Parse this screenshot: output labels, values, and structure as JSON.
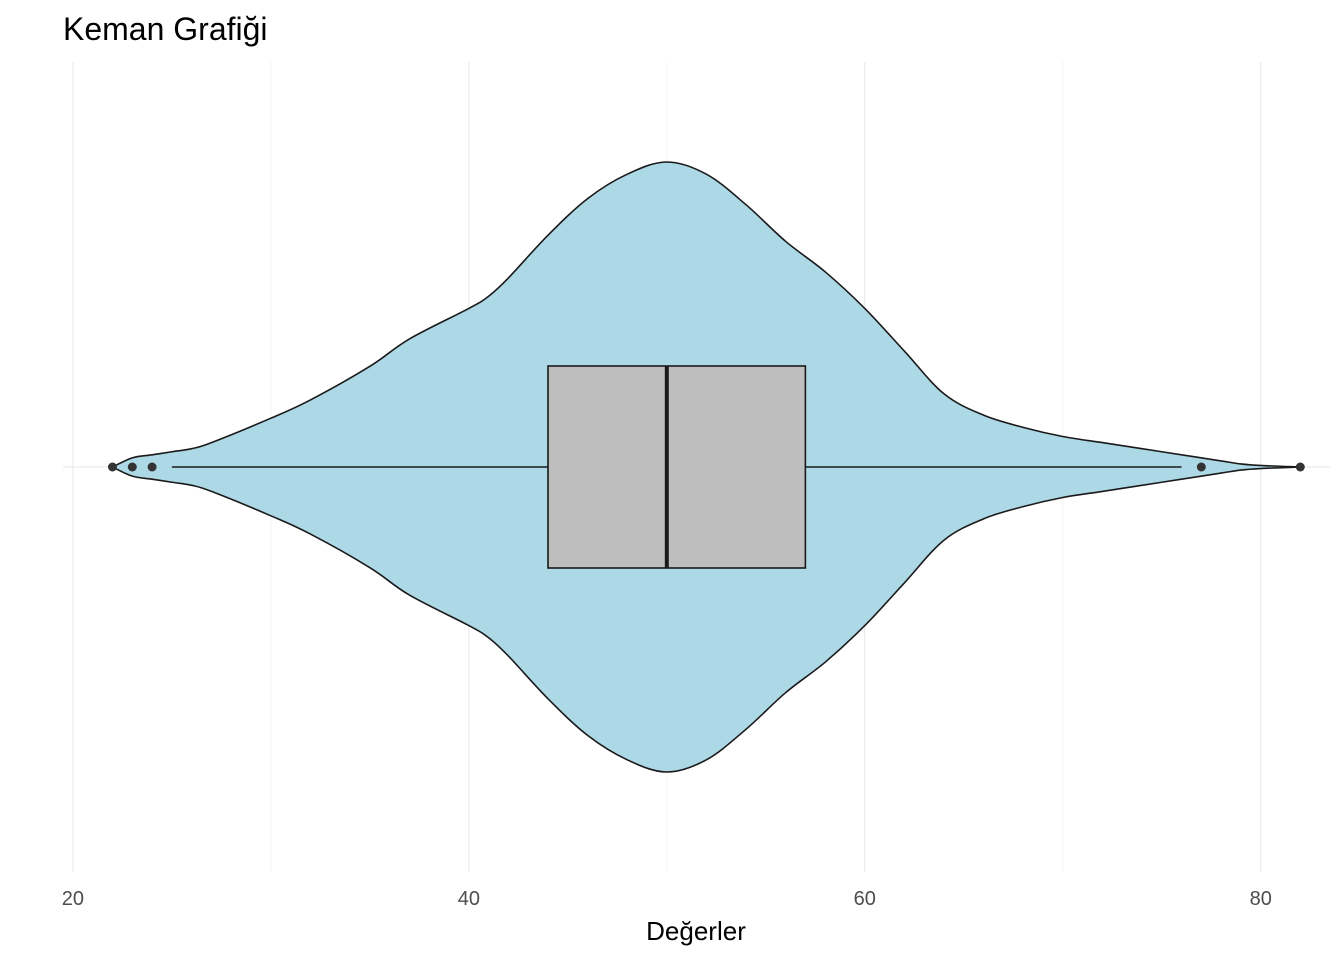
{
  "chart_data": {
    "type": "violin",
    "title": "Keman Grafiği",
    "xlabel": "Değerler",
    "ylabel": "",
    "xlim": [
      19.5,
      83.5
    ],
    "x_ticks": [
      20,
      40,
      60,
      80
    ],
    "x_minor_ticks": [
      30,
      50,
      70
    ],
    "grid": true,
    "colors": {
      "violin_fill": "#add8e6",
      "box_fill": "#bebebe",
      "outline": "#1a1a1a",
      "grid_major": "#ebebeb",
      "grid_minor": "#f2f2f2",
      "points": "#333333"
    },
    "violin_density": [
      {
        "x": 22,
        "w": 0.0
      },
      {
        "x": 23,
        "w": 0.03
      },
      {
        "x": 24,
        "w": 0.04
      },
      {
        "x": 25,
        "w": 0.05
      },
      {
        "x": 26,
        "w": 0.06
      },
      {
        "x": 27,
        "w": 0.08
      },
      {
        "x": 30,
        "w": 0.16
      },
      {
        "x": 32,
        "w": 0.22
      },
      {
        "x": 35,
        "w": 0.33
      },
      {
        "x": 37,
        "w": 0.42
      },
      {
        "x": 40,
        "w": 0.52
      },
      {
        "x": 41,
        "w": 0.56
      },
      {
        "x": 42,
        "w": 0.62
      },
      {
        "x": 44,
        "w": 0.76
      },
      {
        "x": 46,
        "w": 0.88
      },
      {
        "x": 48,
        "w": 0.96
      },
      {
        "x": 50,
        "w": 1.0
      },
      {
        "x": 52,
        "w": 0.96
      },
      {
        "x": 54,
        "w": 0.86
      },
      {
        "x": 56,
        "w": 0.74
      },
      {
        "x": 58,
        "w": 0.64
      },
      {
        "x": 60,
        "w": 0.52
      },
      {
        "x": 62,
        "w": 0.38
      },
      {
        "x": 64,
        "w": 0.24
      },
      {
        "x": 66,
        "w": 0.17
      },
      {
        "x": 68,
        "w": 0.13
      },
      {
        "x": 70,
        "w": 0.1
      },
      {
        "x": 72,
        "w": 0.08
      },
      {
        "x": 74,
        "w": 0.06
      },
      {
        "x": 76,
        "w": 0.04
      },
      {
        "x": 78,
        "w": 0.02
      },
      {
        "x": 79,
        "w": 0.01
      },
      {
        "x": 80,
        "w": 0.005
      },
      {
        "x": 82,
        "w": 0.0
      }
    ],
    "box": {
      "q1": 44,
      "median": 50,
      "q3": 57,
      "whisker_low": 25,
      "whisker_high": 76
    },
    "outliers": [
      22,
      23,
      24,
      77,
      82
    ]
  }
}
